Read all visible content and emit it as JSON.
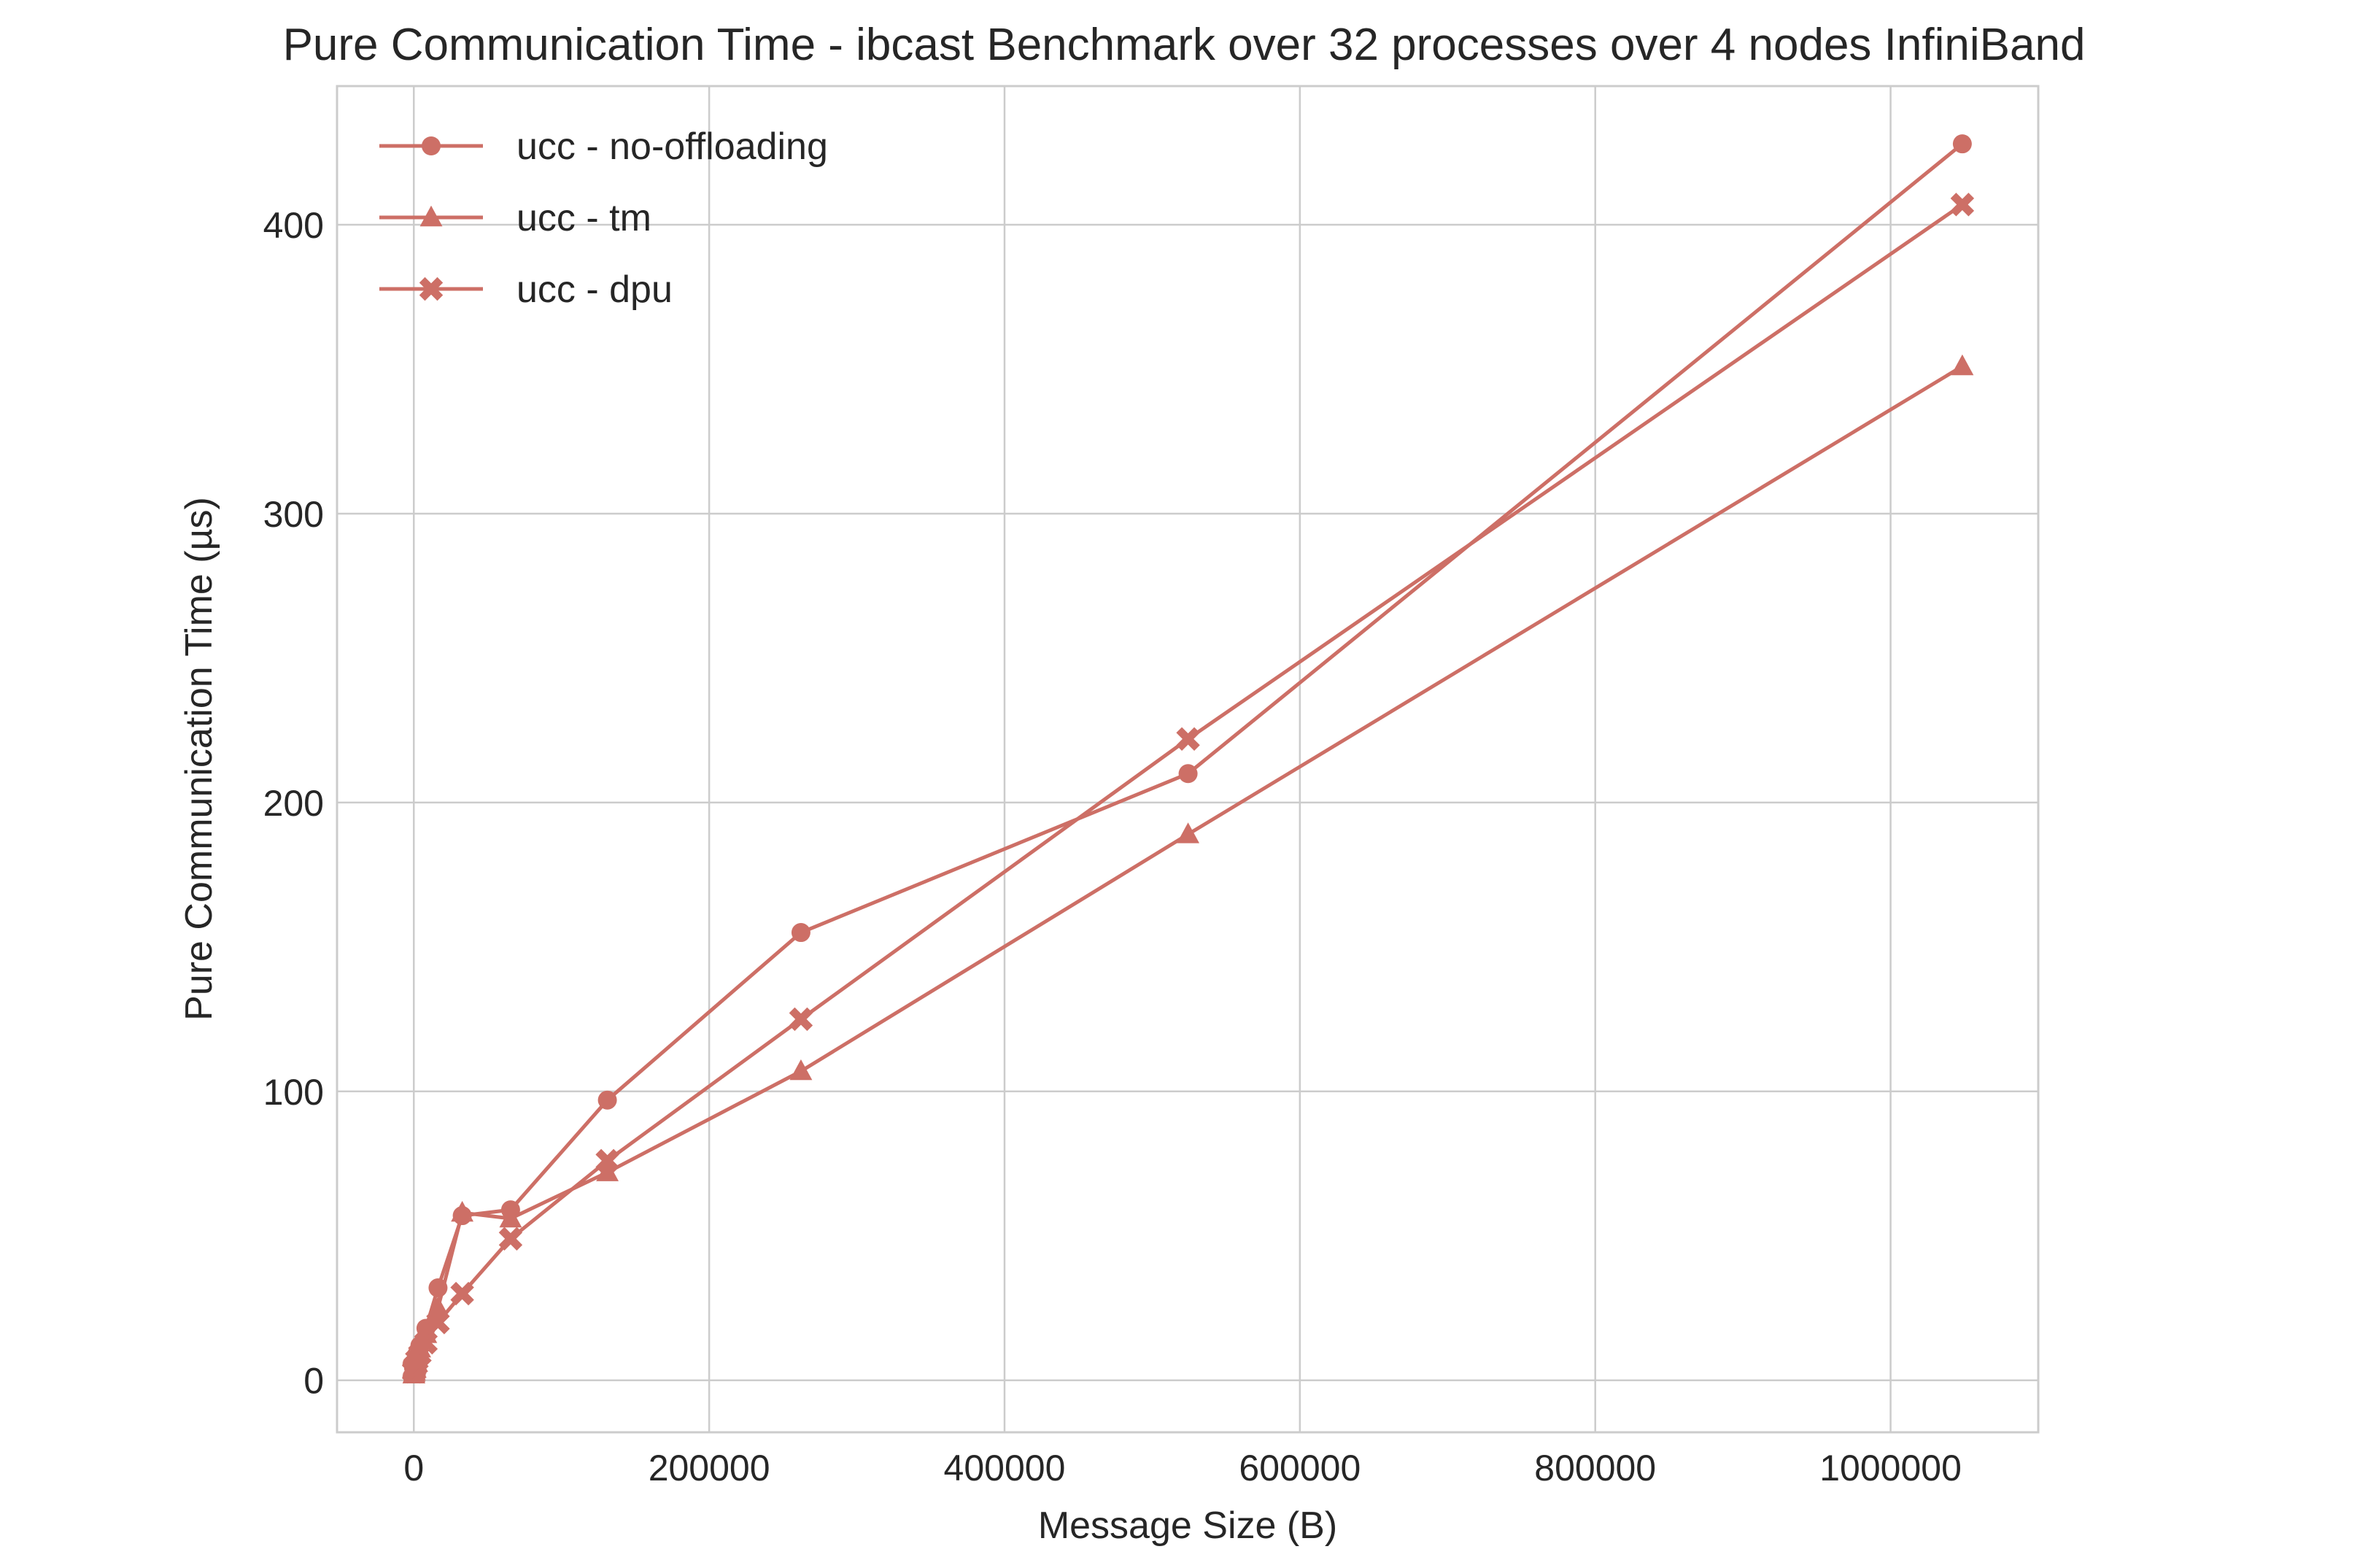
{
  "chart_data": {
    "type": "line",
    "title": "Pure Communication Time - ibcast Benchmark over 32 processes over 4 nodes InfiniBand",
    "xlabel": "Message Size (B)",
    "ylabel": "Pure Communication Time (µs)",
    "xlim": [
      -52000,
      1100000
    ],
    "ylim": [
      -18,
      448
    ],
    "x_ticks": [
      0,
      200000,
      400000,
      600000,
      800000,
      1000000
    ],
    "y_ticks": [
      0,
      100,
      200,
      300,
      400
    ],
    "grid": true,
    "legend_position": "top-left",
    "line_color": "#cd6f66",
    "series": [
      {
        "name": "ucc - no-offloading",
        "marker": "circle",
        "x": [
          1,
          2,
          4,
          8,
          16,
          32,
          64,
          128,
          256,
          512,
          1024,
          2048,
          4096,
          8192,
          16384,
          32768,
          65536,
          131072,
          262144,
          524288,
          1048576
        ],
        "values": [
          4,
          4,
          4,
          4,
          4,
          4,
          4,
          4.5,
          5,
          6,
          6.5,
          9,
          12,
          18,
          32,
          57,
          59,
          97,
          155,
          210,
          428
        ]
      },
      {
        "name": "ucc - tm",
        "marker": "triangle",
        "x": [
          1,
          2,
          4,
          8,
          16,
          32,
          64,
          128,
          256,
          512,
          1024,
          2048,
          4096,
          8192,
          16384,
          32768,
          65536,
          131072,
          262144,
          524288,
          1048576
        ],
        "values": [
          2,
          2,
          2,
          2,
          2,
          2,
          2,
          2,
          2.5,
          3,
          4,
          6,
          11,
          16,
          25,
          58,
          56,
          72,
          107,
          189,
          351
        ]
      },
      {
        "name": "ucc - dpu",
        "marker": "x",
        "x": [
          1,
          2,
          4,
          8,
          16,
          32,
          64,
          128,
          256,
          512,
          1024,
          2048,
          4096,
          8192,
          16384,
          32768,
          65536,
          131072,
          262144,
          524288,
          1048576
        ],
        "values": [
          3,
          3,
          3,
          3,
          3,
          3,
          3,
          3.5,
          4,
          4.5,
          5,
          7,
          9,
          13,
          20,
          30,
          49,
          76,
          125,
          222,
          407
        ]
      }
    ]
  }
}
